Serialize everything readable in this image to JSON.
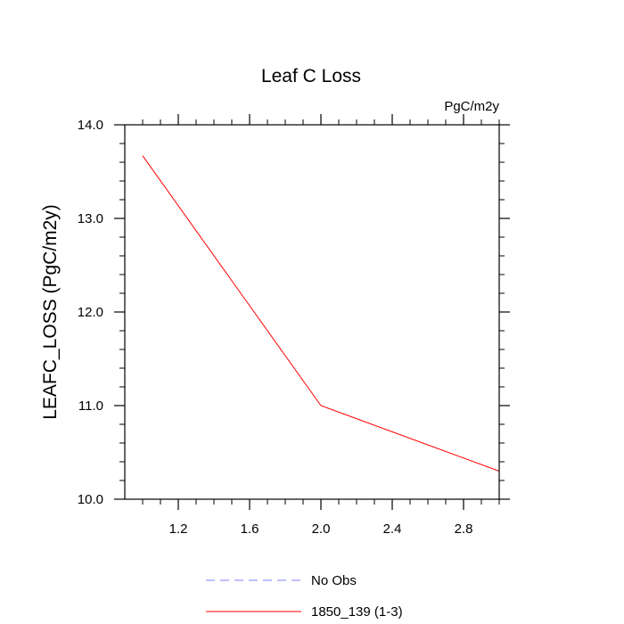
{
  "chart_data": {
    "type": "line",
    "title": "Leaf C Loss",
    "units_label": "PgC/m2y",
    "xlabel": "",
    "ylabel": "LEAFC_LOSS  (PgC/m2y)",
    "xlim": [
      0.9,
      3.0
    ],
    "ylim": [
      10.0,
      14.0
    ],
    "x_ticks": [
      1.2,
      1.6,
      2.0,
      2.4,
      2.8
    ],
    "x_tick_labels": [
      "1.2",
      "1.6",
      "2.0",
      "2.4",
      "2.8"
    ],
    "y_ticks": [
      10.0,
      11.0,
      12.0,
      13.0,
      14.0
    ],
    "y_tick_labels": [
      "10.0",
      "11.0",
      "12.0",
      "13.0",
      "14.0"
    ],
    "grid": false,
    "legend_position": "bottom-center",
    "series": [
      {
        "name": "No Obs",
        "color": "#8080ff",
        "dashed": true,
        "x": [],
        "y": []
      },
      {
        "name": "1850_139 (1-3)",
        "color": "#ff0000",
        "dashed": false,
        "x": [
          1.0,
          2.0,
          3.0
        ],
        "y": [
          13.67,
          11.0,
          10.3
        ]
      }
    ]
  }
}
